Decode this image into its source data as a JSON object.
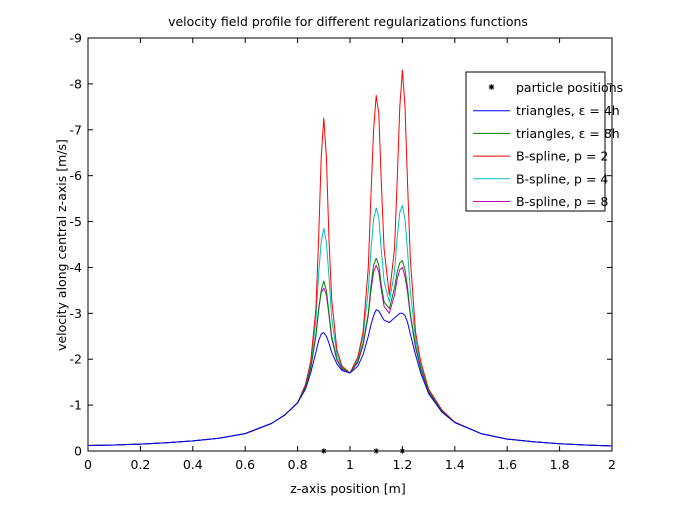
{
  "chart_data": {
    "type": "line",
    "title": "velocity field profile for different regularizations functions",
    "xlabel": "z-axis position [m]",
    "ylabel": "velocity along central z-axis [m/s]",
    "xlim": [
      0,
      2
    ],
    "ylim": [
      0,
      -9
    ],
    "y_axis_reversed": true,
    "grid": false,
    "legend_position": "top-right",
    "x_ticks": [
      0,
      0.2,
      0.4,
      0.6,
      0.8,
      1,
      1.2,
      1.4,
      1.6,
      1.8,
      2
    ],
    "x_tick_labels": [
      "0",
      "0.2",
      "0.4",
      "0.6",
      "0.8",
      "1",
      "1.2",
      "1.4",
      "1.6",
      "1.8",
      "2"
    ],
    "y_ticks": [
      0,
      -1,
      -2,
      -3,
      -4,
      -5,
      -6,
      -7,
      -8,
      -9
    ],
    "y_tick_labels": [
      "0",
      "-1",
      "-2",
      "-3",
      "-4",
      "-5",
      "-6",
      "-7",
      "-8",
      "-9"
    ],
    "particle_positions": {
      "name": "particle positions",
      "marker": "*",
      "color": "#000000",
      "x": [
        0.9,
        1.1,
        1.2
      ],
      "y": [
        0,
        0,
        0
      ]
    },
    "x": [
      0,
      0.1,
      0.2,
      0.3,
      0.4,
      0.5,
      0.6,
      0.7,
      0.75,
      0.8,
      0.83,
      0.85,
      0.87,
      0.88,
      0.89,
      0.9,
      0.91,
      0.92,
      0.93,
      0.95,
      0.97,
      1.0,
      1.03,
      1.05,
      1.07,
      1.08,
      1.09,
      1.1,
      1.11,
      1.12,
      1.13,
      1.15,
      1.17,
      1.18,
      1.19,
      1.2,
      1.21,
      1.22,
      1.23,
      1.25,
      1.27,
      1.3,
      1.35,
      1.4,
      1.5,
      1.6,
      1.7,
      1.8,
      1.9,
      2.0
    ],
    "series": [
      {
        "name": "triangles, ε = 4h",
        "color": "#0000ff",
        "values": [
          -0.12,
          -0.13,
          -0.15,
          -0.18,
          -0.22,
          -0.28,
          -0.38,
          -0.6,
          -0.78,
          -1.05,
          -1.35,
          -1.7,
          -2.15,
          -2.4,
          -2.55,
          -2.58,
          -2.5,
          -2.35,
          -2.15,
          -1.9,
          -1.75,
          -1.7,
          -1.85,
          -2.1,
          -2.5,
          -2.75,
          -2.95,
          -3.08,
          -3.05,
          -2.95,
          -2.85,
          -2.8,
          -2.9,
          -2.95,
          -3.0,
          -3.0,
          -2.95,
          -2.8,
          -2.55,
          -2.1,
          -1.7,
          -1.25,
          -0.85,
          -0.62,
          -0.38,
          -0.26,
          -0.2,
          -0.16,
          -0.13,
          -0.11
        ]
      },
      {
        "name": "triangles, ε = 8h",
        "color": "#007f00",
        "values": [
          -0.12,
          -0.13,
          -0.15,
          -0.18,
          -0.22,
          -0.28,
          -0.38,
          -0.6,
          -0.78,
          -1.05,
          -1.4,
          -1.8,
          -2.5,
          -3.05,
          -3.5,
          -3.7,
          -3.5,
          -3.0,
          -2.5,
          -2.0,
          -1.8,
          -1.7,
          -1.95,
          -2.35,
          -3.0,
          -3.6,
          -4.05,
          -4.2,
          -4.05,
          -3.6,
          -3.25,
          -3.1,
          -3.55,
          -3.9,
          -4.1,
          -4.15,
          -3.95,
          -3.55,
          -3.0,
          -2.3,
          -1.8,
          -1.3,
          -0.87,
          -0.62,
          -0.38,
          -0.26,
          -0.2,
          -0.16,
          -0.13,
          -0.11
        ]
      },
      {
        "name": "B-spline, p = 2",
        "color": "#ff0000",
        "values": [
          -0.12,
          -0.13,
          -0.15,
          -0.18,
          -0.22,
          -0.28,
          -0.38,
          -0.6,
          -0.78,
          -1.05,
          -1.45,
          -1.95,
          -3.1,
          -4.6,
          -6.4,
          -7.25,
          -6.4,
          -4.6,
          -3.3,
          -2.2,
          -1.85,
          -1.7,
          -2.05,
          -2.6,
          -4.0,
          -5.6,
          -7.0,
          -7.75,
          -7.35,
          -5.8,
          -4.4,
          -3.4,
          -4.4,
          -5.9,
          -7.5,
          -8.3,
          -7.5,
          -5.8,
          -4.2,
          -2.6,
          -1.95,
          -1.35,
          -0.9,
          -0.63,
          -0.38,
          -0.26,
          -0.2,
          -0.16,
          -0.13,
          -0.11
        ]
      },
      {
        "name": "B-spline, p = 4",
        "color": "#00bfbf",
        "values": [
          -0.12,
          -0.13,
          -0.15,
          -0.18,
          -0.22,
          -0.28,
          -0.38,
          -0.6,
          -0.78,
          -1.05,
          -1.42,
          -1.88,
          -2.85,
          -3.85,
          -4.55,
          -4.85,
          -4.55,
          -3.8,
          -2.9,
          -2.1,
          -1.82,
          -1.7,
          -2.0,
          -2.5,
          -3.5,
          -4.4,
          -5.05,
          -5.3,
          -5.1,
          -4.35,
          -3.7,
          -3.25,
          -3.9,
          -4.65,
          -5.2,
          -5.35,
          -5.05,
          -4.35,
          -3.5,
          -2.45,
          -1.88,
          -1.32,
          -0.88,
          -0.62,
          -0.38,
          -0.26,
          -0.2,
          -0.16,
          -0.13,
          -0.11
        ]
      },
      {
        "name": "B-spline, p = 8",
        "color": "#bf00bf",
        "values": [
          -0.12,
          -0.13,
          -0.15,
          -0.18,
          -0.22,
          -0.28,
          -0.38,
          -0.6,
          -0.78,
          -1.05,
          -1.4,
          -1.8,
          -2.55,
          -3.1,
          -3.45,
          -3.55,
          -3.4,
          -2.95,
          -2.45,
          -1.98,
          -1.78,
          -1.7,
          -1.93,
          -2.3,
          -2.95,
          -3.5,
          -3.9,
          -4.05,
          -3.9,
          -3.5,
          -3.15,
          -3.0,
          -3.4,
          -3.75,
          -3.95,
          -4.0,
          -3.8,
          -3.45,
          -2.95,
          -2.25,
          -1.78,
          -1.28,
          -0.86,
          -0.62,
          -0.38,
          -0.26,
          -0.2,
          -0.16,
          -0.13,
          -0.11
        ]
      }
    ]
  }
}
